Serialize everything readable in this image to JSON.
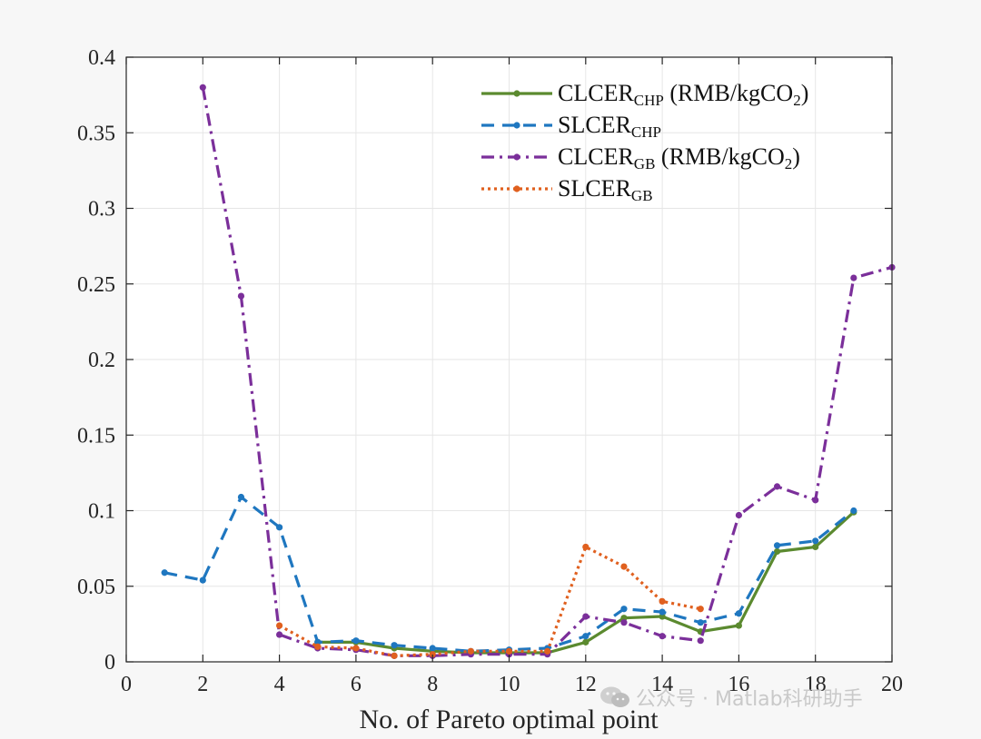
{
  "chart_data": {
    "type": "line",
    "xlabel": "No. of Pareto optimal point",
    "ylabel": "",
    "xlim": [
      0,
      20
    ],
    "ylim": [
      0,
      0.4
    ],
    "xticks": [
      0,
      2,
      4,
      6,
      8,
      10,
      12,
      14,
      16,
      18,
      20
    ],
    "yticks": [
      0,
      0.05,
      0.1,
      0.15,
      0.2,
      0.25,
      0.3,
      0.35,
      0.4
    ],
    "xtick_labels": [
      "0",
      "2",
      "4",
      "6",
      "8",
      "10",
      "12",
      "14",
      "16",
      "18",
      "20"
    ],
    "ytick_labels": [
      "0",
      "0.05",
      "0.1",
      "0.15",
      "0.2",
      "0.25",
      "0.3",
      "0.35",
      "0.4"
    ],
    "grid": true,
    "legend_position": "top-right",
    "series": [
      {
        "name": "CLCER_CHP (RMB/kgCO2)",
        "legend_main": "CLCER",
        "legend_sub": "CHP",
        "legend_unit": " (RMB/kgCO",
        "legend_unit_sub": "2",
        "legend_unit_end": ")",
        "color": "#5b8a2f",
        "style": "solid",
        "x": [
          5,
          6,
          7,
          8,
          9,
          10,
          11,
          12,
          13,
          14,
          15,
          16,
          17,
          18,
          19
        ],
        "values": [
          0.013,
          0.013,
          0.009,
          0.007,
          0.006,
          0.006,
          0.006,
          0.013,
          0.029,
          0.03,
          0.02,
          0.024,
          0.073,
          0.076,
          0.099
        ]
      },
      {
        "name": "SLCER_CHP",
        "legend_main": "SLCER",
        "legend_sub": "CHP",
        "legend_unit": "",
        "legend_unit_sub": "",
        "legend_unit_end": "",
        "color": "#1f77c0",
        "style": "dashed",
        "x": [
          1,
          2,
          3,
          4,
          5,
          6,
          7,
          8,
          9,
          10,
          11,
          12,
          13,
          14,
          15,
          16,
          17,
          18,
          19
        ],
        "values": [
          0.059,
          0.054,
          0.109,
          0.089,
          0.013,
          0.014,
          0.011,
          0.009,
          0.007,
          0.008,
          0.009,
          0.017,
          0.035,
          0.033,
          0.026,
          0.032,
          0.077,
          0.08,
          0.1
        ]
      },
      {
        "name": "CLCER_GB (RMB/kgCO2)",
        "legend_main": "CLCER",
        "legend_sub": "GB",
        "legend_unit": " (RMB/kgCO",
        "legend_unit_sub": "2",
        "legend_unit_end": ")",
        "color": "#7b2f9a",
        "style": "dashdot",
        "x": [
          2,
          3,
          4,
          5,
          6,
          7,
          8,
          9,
          10,
          11,
          12,
          13,
          14,
          15,
          16,
          17,
          18,
          19,
          20
        ],
        "values": [
          0.38,
          0.242,
          0.018,
          0.009,
          0.008,
          0.004,
          0.004,
          0.005,
          0.005,
          0.005,
          0.03,
          0.026,
          0.017,
          0.014,
          0.097,
          0.116,
          0.107,
          0.254,
          0.261
        ]
      },
      {
        "name": "SLCER_GB",
        "legend_main": "SLCER",
        "legend_sub": "GB",
        "legend_unit": "",
        "legend_unit_sub": "",
        "legend_unit_end": "",
        "color": "#e0601f",
        "style": "dotted",
        "x": [
          4,
          5,
          6,
          7,
          8,
          9,
          10,
          11,
          12,
          13,
          14,
          15
        ],
        "values": [
          0.024,
          0.01,
          0.009,
          0.004,
          0.005,
          0.007,
          0.007,
          0.007,
          0.076,
          0.063,
          0.04,
          0.035
        ]
      }
    ]
  },
  "watermark": {
    "text": "公众号 · Matlab科研助手",
    "icon": "wechat-icon"
  }
}
